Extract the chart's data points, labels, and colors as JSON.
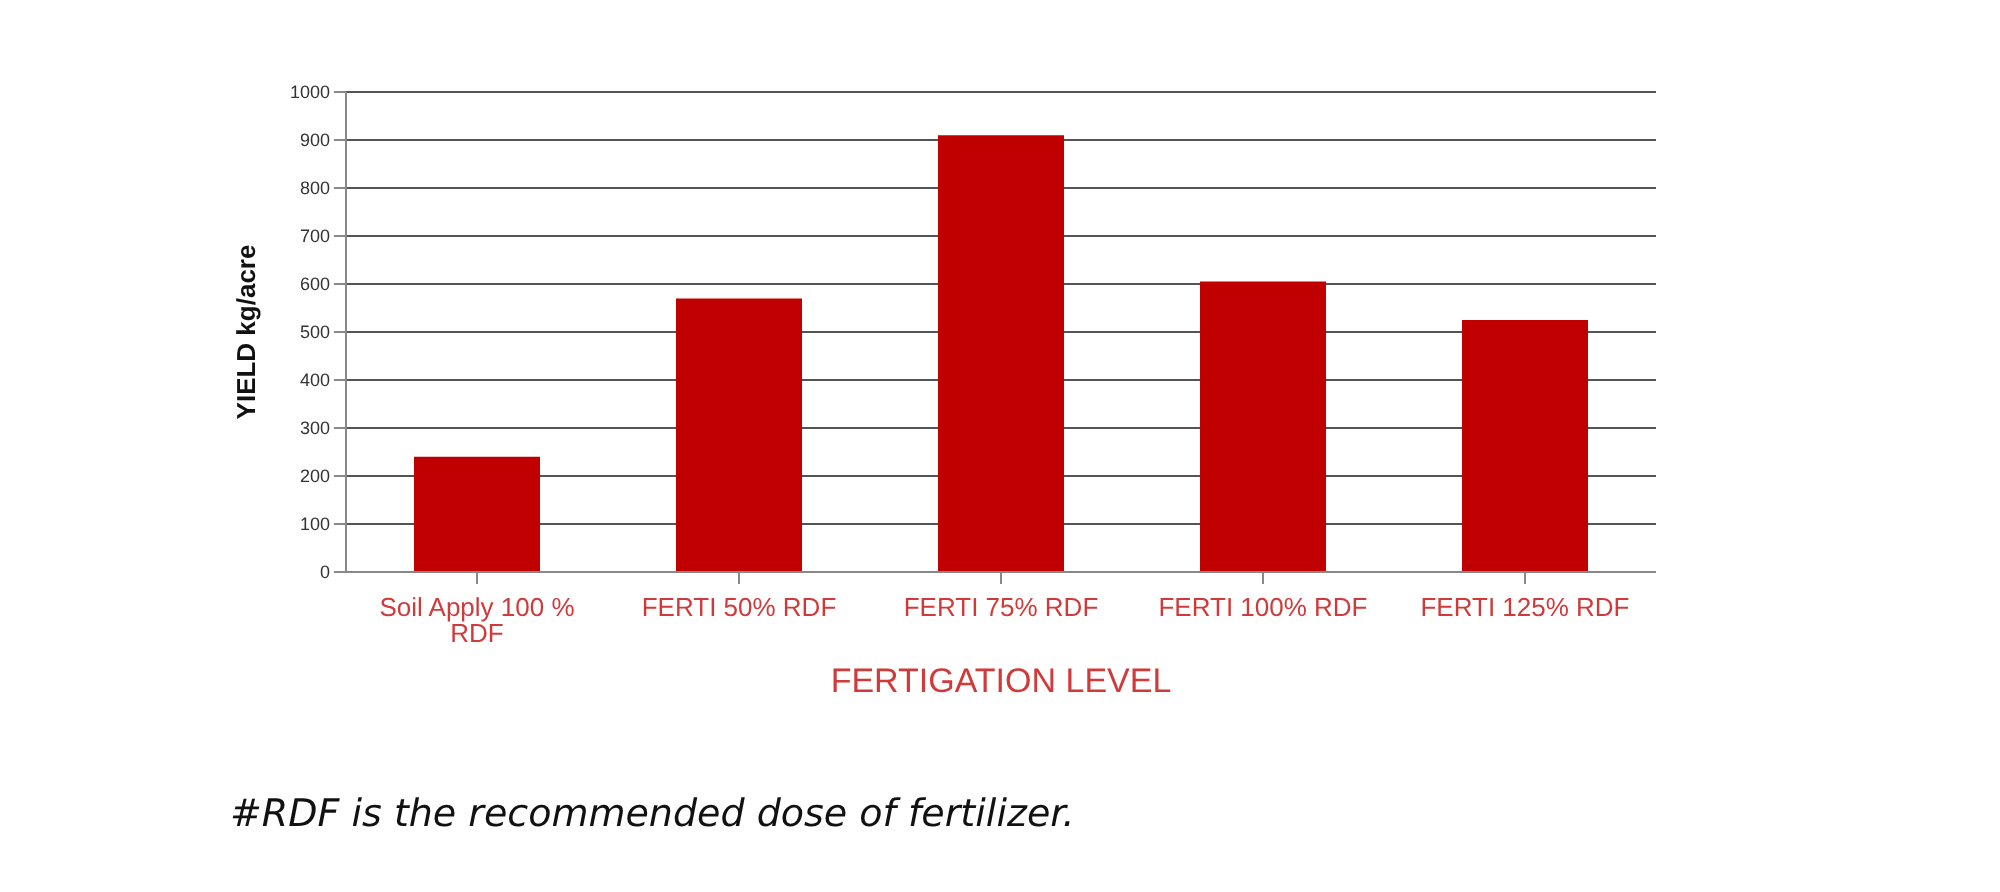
{
  "chart_data": {
    "type": "bar",
    "categories": [
      "Soil Apply 100 % RDF",
      "FERTI 50% RDF",
      "FERTI 75% RDF",
      "FERTI 100% RDF",
      "FERTI 125% RDF"
    ],
    "values": [
      240,
      570,
      910,
      605,
      525
    ],
    "color": "#c00000",
    "xlabel": "FERTIGATION LEVEL",
    "ylabel": "YIELD kg/acre",
    "ylim": [
      0,
      1000
    ],
    "yticks": [
      0,
      100,
      200,
      300,
      400,
      500,
      600,
      700,
      800,
      900,
      1000
    ],
    "grid": "y",
    "annotations": [
      "#RDF is the recommended dose of fertilizer."
    ]
  }
}
